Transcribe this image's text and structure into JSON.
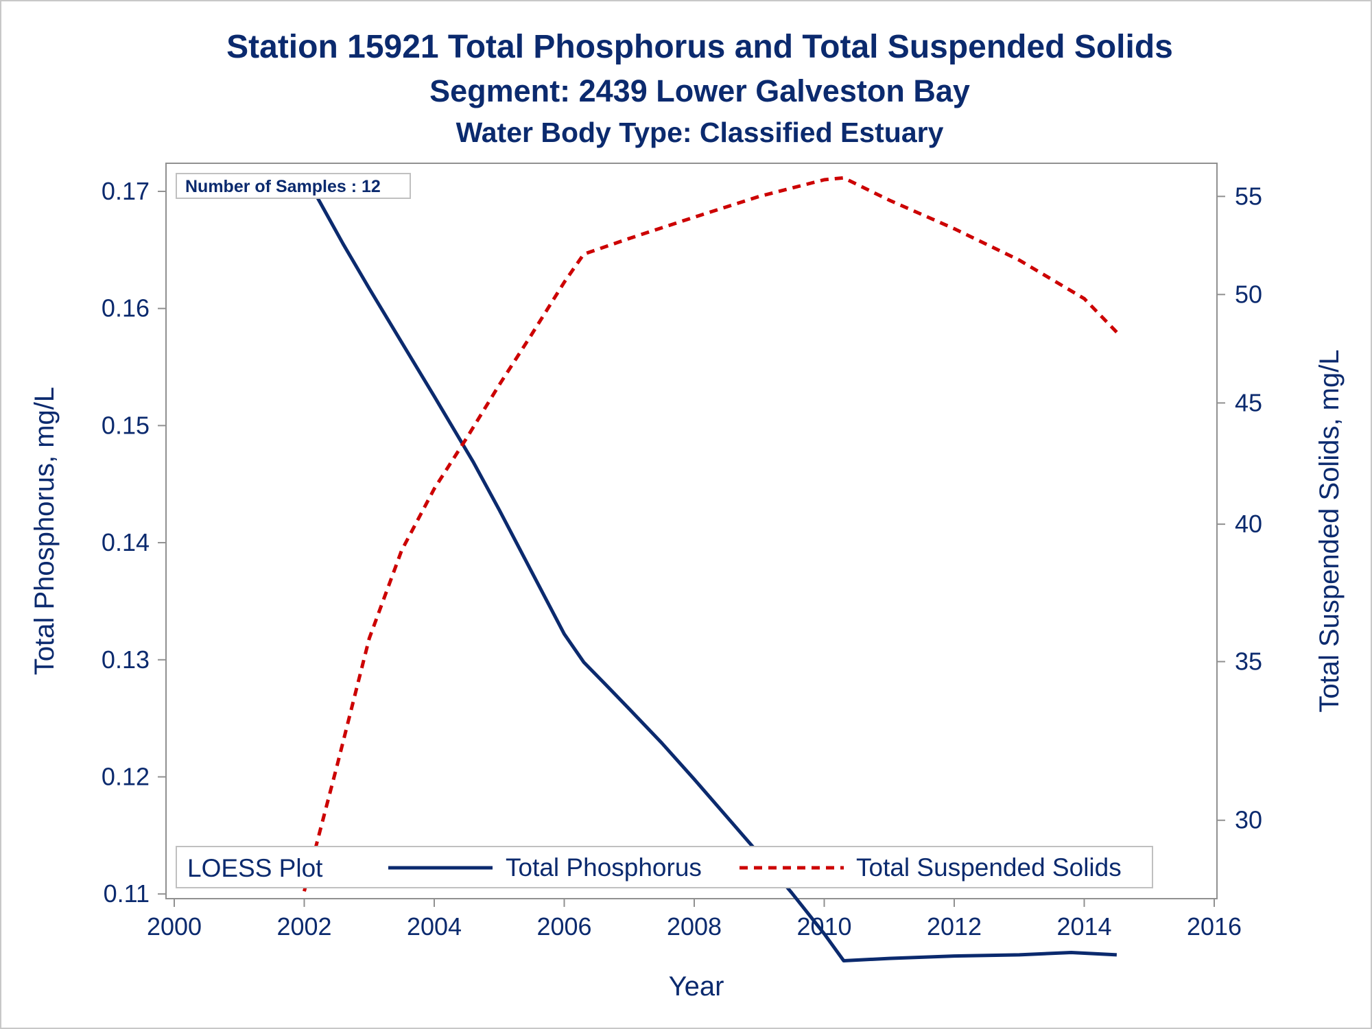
{
  "chart_data": {
    "type": "line",
    "title": "Station 15921  Total Phosphorus and Total Suspended Solids",
    "subtitle": "Segment: 2439  Lower Galveston Bay",
    "subtitle2": "Water Body Type: Classified Estuary",
    "xlabel": "Year",
    "ylabel": "Total Phosphorus, mg/L",
    "y2label": "Total Suspended Solids, mg/L",
    "xlim": [
      2000,
      2016
    ],
    "ylim": [
      0.1096,
      0.1724
    ],
    "y2lim": [
      27.8,
      56.8
    ],
    "y2scale": "log",
    "xticks": [
      2000,
      2002,
      2004,
      2006,
      2008,
      2010,
      2012,
      2014,
      2016
    ],
    "yticks": [
      0.11,
      0.12,
      0.13,
      0.14,
      0.15,
      0.16,
      0.17
    ],
    "y2ticks": [
      30,
      35,
      40,
      45,
      50,
      55
    ],
    "inset_text": "Number of Samples : 12",
    "legend": {
      "title": "LOESS Plot",
      "placement": "bottom-inside",
      "entries": [
        "Total Phosphorus",
        "Total Suspended Solids"
      ]
    },
    "series": [
      {
        "name": "Total Phosphorus",
        "axis": "left",
        "color": "#0b2a6e",
        "style": "solid",
        "x": [
          2002.0,
          2002.3,
          2002.6,
          2003.0,
          2003.5,
          2004.0,
          2004.6,
          2005.0,
          2005.5,
          2006.0,
          2006.3,
          2006.6,
          2007.0,
          2007.5,
          2008.0,
          2008.5,
          2009.0,
          2009.5,
          2010.0,
          2010.3,
          2011.0,
          2012.0,
          2013.0,
          2013.8,
          2014.5
        ],
        "y": [
          0.1715,
          0.1685,
          0.1655,
          0.1617,
          0.1571,
          0.1525,
          0.1469,
          0.1428,
          0.1375,
          0.1322,
          0.1298,
          0.1281,
          0.1258,
          0.1229,
          0.1198,
          0.1166,
          0.1134,
          0.1101,
          0.1066,
          0.1043,
          0.1045,
          0.1047,
          0.1048,
          0.105,
          0.1048
        ]
      },
      {
        "name": "Total Suspended Solids",
        "axis": "right",
        "color": "#cc0000",
        "style": "dashed",
        "x": [
          2002.0,
          2002.5,
          2003.0,
          2003.5,
          2004.0,
          2004.5,
          2005.0,
          2005.5,
          2006.0,
          2006.3,
          2007.0,
          2008.0,
          2009.0,
          2010.0,
          2010.3,
          2011.0,
          2012.0,
          2013.0,
          2014.0,
          2014.5
        ],
        "y": [
          28.0,
          31.6,
          35.8,
          39.0,
          41.4,
          43.5,
          45.8,
          48.1,
          50.6,
          52.0,
          52.8,
          53.9,
          55.0,
          55.9,
          56.0,
          54.8,
          53.3,
          51.7,
          49.8,
          48.2
        ]
      }
    ]
  }
}
